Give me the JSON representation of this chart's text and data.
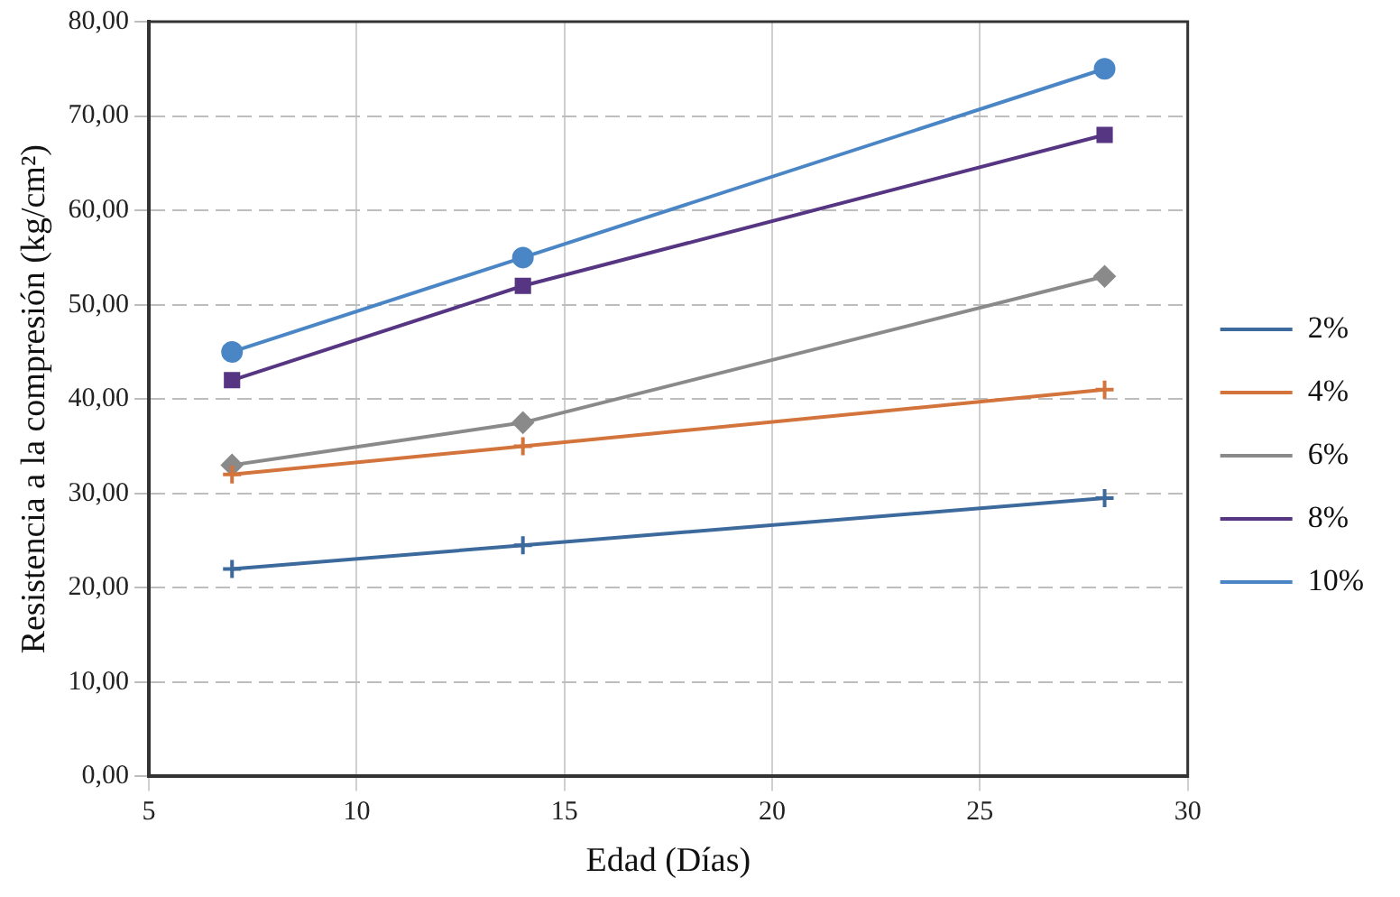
{
  "chart_data": {
    "type": "line",
    "xlabel": "Edad (Días)",
    "ylabel": "Resistencia a la compresión (kg/cm²)",
    "xlim": [
      5,
      30
    ],
    "xticks": [
      5,
      10,
      15,
      20,
      25,
      30
    ],
    "ylim": [
      0,
      80
    ],
    "yticks": [
      {
        "value": 0,
        "label": "0,00"
      },
      {
        "value": 10,
        "label": "10,00"
      },
      {
        "value": 20,
        "label": "20,00"
      },
      {
        "value": 30,
        "label": "30,00"
      },
      {
        "value": 40,
        "label": "40,00"
      },
      {
        "value": 50,
        "label": "50,00"
      },
      {
        "value": 60,
        "label": "60,00"
      },
      {
        "value": 70,
        "label": "70,00"
      },
      {
        "value": 80,
        "label": "80,00"
      }
    ],
    "grid": true,
    "legend": "right",
    "x": [
      7,
      14,
      28
    ],
    "series": [
      {
        "name": "2%",
        "color": "#3d6a9c",
        "marker": "cross",
        "values": [
          22,
          24.5,
          29.5
        ]
      },
      {
        "name": "4%",
        "color": "#d2743c",
        "marker": "cross",
        "values": [
          32,
          35,
          41
        ]
      },
      {
        "name": "6%",
        "color": "#8a8a8a",
        "marker": "diamond",
        "values": [
          33,
          37.5,
          53
        ]
      },
      {
        "name": "8%",
        "color": "#563583",
        "marker": "square",
        "values": [
          42,
          52,
          68
        ]
      },
      {
        "name": "10%",
        "color": "#4a86c5",
        "marker": "circle",
        "values": [
          45,
          55,
          75
        ]
      }
    ]
  }
}
